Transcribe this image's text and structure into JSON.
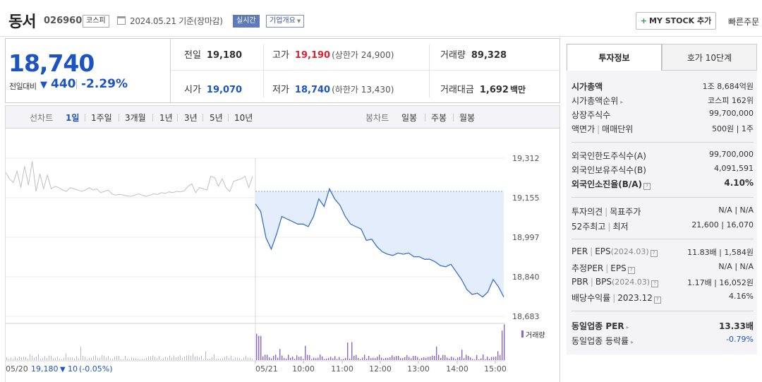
{
  "header": {
    "name": "동서",
    "code": "026960",
    "market": "코스피",
    "date_text": "2024.05.21 기준(장마감)",
    "realtime_label": "실시간",
    "company_label": "기업개요",
    "mystock_label": "MY STOCK 추가",
    "quick_order_label": "빠른주문"
  },
  "price": {
    "current": "18,740",
    "change_label": "전일대비",
    "change": "440",
    "change_pct": "-2.29%"
  },
  "grid": {
    "prev_label": "전일",
    "prev": "19,180",
    "high_label": "고가",
    "high": "19,190",
    "upper_limit": "(상한가 24,900)",
    "volume_label": "거래량",
    "volume": "89,328",
    "open_label": "시가",
    "open": "19,070",
    "low_label": "저가",
    "low": "18,740",
    "lower_limit": "(하한가 13,430)",
    "amount_label": "거래대금",
    "amount": "1,692",
    "amount_unit": "백만"
  },
  "tabs": {
    "line_label": "선차트",
    "line_items": [
      "1일",
      "1주일",
      "3개월",
      "1년",
      "3년",
      "5년",
      "10년"
    ],
    "active": "1일",
    "candle_label": "봉차트",
    "candle_items": [
      "일봉",
      "주봉",
      "월봉"
    ]
  },
  "chart_data": {
    "type": "line",
    "y_ticks": [
      "19,312",
      "19,155",
      "18,997",
      "18,840",
      "18,683"
    ],
    "ylim": [
      18683,
      19312
    ],
    "x_ticks": [
      "05/21",
      "10:00",
      "11:00",
      "12:00",
      "13:00",
      "14:00",
      "15:00"
    ],
    "volume_label": "거래량",
    "prev_day_label": "05/20",
    "prev_day_price": "19,180",
    "prev_day_change": "10",
    "prev_day_pct": "(-0.05%)",
    "prev_close": 19180,
    "prev_day_series": [
      19255,
      19230,
      19215,
      19260,
      19195,
      19280,
      19205,
      19300,
      19180,
      19250,
      19190,
      19245,
      19190,
      19200,
      19195,
      19185,
      19180,
      19195,
      19190,
      19185,
      19180,
      19185,
      19195,
      19185,
      19190,
      19175,
      19180,
      19185,
      19170,
      19165,
      19168,
      19165,
      19162,
      19160,
      19165,
      19170,
      19165,
      19160,
      19165,
      19170,
      19168,
      19175,
      19172,
      19178,
      19175,
      19180,
      19178,
      19182,
      19200,
      19210,
      19175,
      19195,
      19190,
      19185,
      19240,
      19235,
      19200,
      19230,
      19195,
      19180,
      19220,
      19225,
      19230,
      19240,
      19195,
      19240
    ],
    "today_series": [
      19130,
      19100,
      18995,
      18950,
      19010,
      19080,
      19070,
      19060,
      19050,
      19050,
      19040,
      19080,
      19150,
      19120,
      19190,
      19150,
      19125,
      19080,
      19050,
      19040,
      19030,
      18985,
      18990,
      18960,
      18940,
      18930,
      18925,
      18935,
      18930,
      18935,
      18920,
      18920,
      18910,
      18910,
      18900,
      18885,
      18880,
      18890,
      18860,
      18830,
      18790,
      18770,
      18775,
      18760,
      18780,
      18830,
      18800,
      18760
    ]
  },
  "right": {
    "tab1": "투자정보",
    "tab2": "호가 10단계",
    "rows": {
      "mcap_label": "시가총액",
      "mcap": "1조 8,684억원",
      "mcap_rank_label": "시가총액순위",
      "mcap_rank": "코스피 162위",
      "listed_label": "상장주식수",
      "listed": "99,700,000",
      "par_label": "액면가",
      "par_sep": "매매단위",
      "par": "500원 | 1주",
      "foreign_limit_label": "외국인한도주식수(A)",
      "foreign_limit": "99,700,000",
      "foreign_hold_label": "외국인보유주식수(B)",
      "foreign_hold": "4,091,591",
      "foreign_ratio_label": "외국인소진율(B/A)",
      "foreign_ratio": "4.10%",
      "opinion_label": "투자의견",
      "opinion_sep": "목표주가",
      "opinion": "N/A | N/A",
      "w52_label": "52주최고",
      "w52_sep": "최저",
      "w52": "21,600 | 16,070",
      "per_label": "PER",
      "per_sep": "EPS",
      "per_date": "(2024.03)",
      "per": "11.83배 | 1,584원",
      "eper_label": "추정PER",
      "eper_sep": "EPS",
      "eper": "N/A | N/A",
      "pbr_label": "PBR",
      "pbr_sep": "BPS",
      "pbr_date": "(2024.03)",
      "pbr": "1.17배 | 16,052원",
      "div_label": "배당수익률",
      "div_sep": "2023.12",
      "div": "4.16%",
      "ind_per_label": "동일업종 PER",
      "ind_per": "13.33배",
      "ind_rate_label": "동일업종 등락률",
      "ind_rate": "-0.79%"
    }
  },
  "colors": {
    "down_blue": "#1c54c3",
    "up_red": "#d9232e",
    "today_line": "#3a6fd0",
    "today_fill": "#e4edfb",
    "prev_line": "#c0c0c0",
    "volume_bar": "#8a66c8"
  }
}
